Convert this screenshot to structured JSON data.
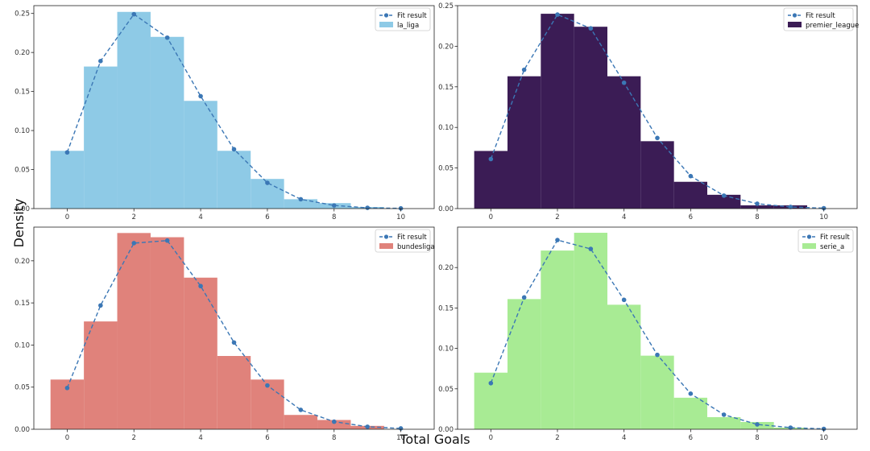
{
  "figure": {
    "xlabel": "Total Goals",
    "ylabel": "Density"
  },
  "chart_data": [
    {
      "type": "bar",
      "name": "la_liga",
      "color": "#8ecae6",
      "bin_edges": [
        -0.5,
        0.5,
        1.5,
        2.5,
        3.5,
        4.5,
        5.5,
        6.5,
        7.5,
        8.5,
        9.5,
        10.5
      ],
      "values": [
        0.074,
        0.182,
        0.252,
        0.22,
        0.138,
        0.074,
        0.038,
        0.012,
        0.007,
        0.002,
        0.0
      ],
      "fit": {
        "label": "Fit result",
        "x": [
          0,
          1,
          2,
          3,
          4,
          5,
          6,
          7,
          8,
          9,
          10
        ],
        "y": [
          0.072,
          0.189,
          0.249,
          0.219,
          0.144,
          0.076,
          0.033,
          0.012,
          0.004,
          0.001,
          0.0003
        ]
      },
      "xlim": [
        -1,
        11
      ],
      "ylim": [
        0,
        0.26
      ],
      "xticks": [
        0,
        2,
        4,
        6,
        8,
        10
      ],
      "yticks": [
        "0.00",
        "0.05",
        "0.10",
        "0.15",
        "0.20",
        "0.25"
      ]
    },
    {
      "type": "bar",
      "name": "premier_league",
      "color": "#3b1c55",
      "bin_edges": [
        -0.5,
        0.5,
        1.5,
        2.5,
        3.5,
        4.5,
        5.5,
        6.5,
        7.5,
        8.5,
        9.5,
        10.5
      ],
      "values": [
        0.071,
        0.163,
        0.24,
        0.224,
        0.163,
        0.083,
        0.033,
        0.017,
        0.004,
        0.004,
        0.0
      ],
      "fit": {
        "label": "Fit result",
        "x": [
          0,
          1,
          2,
          3,
          4,
          5,
          6,
          7,
          8,
          9,
          10
        ],
        "y": [
          0.061,
          0.171,
          0.239,
          0.222,
          0.155,
          0.087,
          0.04,
          0.016,
          0.006,
          0.002,
          0.0005
        ]
      },
      "xlim": [
        -1,
        11
      ],
      "ylim": [
        0,
        0.25
      ],
      "xticks": [
        0,
        2,
        4,
        6,
        8,
        10
      ],
      "yticks": [
        "0.00",
        "0.05",
        "0.10",
        "0.15",
        "0.20",
        "0.25"
      ]
    },
    {
      "type": "bar",
      "name": "bundesliga",
      "color": "#e0827b",
      "bin_edges": [
        -0.5,
        0.5,
        1.5,
        2.5,
        3.5,
        4.5,
        5.5,
        6.5,
        7.5,
        8.5,
        9.5,
        10.5
      ],
      "values": [
        0.059,
        0.128,
        0.233,
        0.228,
        0.18,
        0.087,
        0.059,
        0.017,
        0.011,
        0.004,
        0.0
      ],
      "fit": {
        "label": "Fit result",
        "x": [
          0,
          1,
          2,
          3,
          4,
          5,
          6,
          7,
          8,
          9,
          10
        ],
        "y": [
          0.049,
          0.147,
          0.221,
          0.224,
          0.17,
          0.103,
          0.052,
          0.023,
          0.009,
          0.003,
          0.001
        ]
      },
      "xlim": [
        -1,
        11
      ],
      "ylim": [
        0,
        0.24
      ],
      "xticks": [
        0,
        2,
        4,
        6,
        8,
        10
      ],
      "yticks": [
        "0.00",
        "0.05",
        "0.10",
        "0.15",
        "0.20"
      ]
    },
    {
      "type": "bar",
      "name": "serie_a",
      "color": "#a8eb94",
      "bin_edges": [
        -0.5,
        0.5,
        1.5,
        2.5,
        3.5,
        4.5,
        5.5,
        6.5,
        7.5,
        8.5,
        9.5,
        10.5
      ],
      "values": [
        0.07,
        0.161,
        0.221,
        0.243,
        0.154,
        0.091,
        0.039,
        0.015,
        0.009,
        0.002,
        0.0
      ],
      "fit": {
        "label": "Fit result",
        "x": [
          0,
          1,
          2,
          3,
          4,
          5,
          6,
          7,
          8,
          9,
          10
        ],
        "y": [
          0.057,
          0.163,
          0.234,
          0.223,
          0.16,
          0.092,
          0.044,
          0.018,
          0.006,
          0.002,
          0.0005
        ]
      },
      "xlim": [
        -1,
        11
      ],
      "ylim": [
        0,
        0.25
      ],
      "xticks": [
        0,
        2,
        4,
        6,
        8,
        10
      ],
      "yticks": [
        "0.00",
        "0.05",
        "0.10",
        "0.15",
        "0.20"
      ]
    }
  ]
}
